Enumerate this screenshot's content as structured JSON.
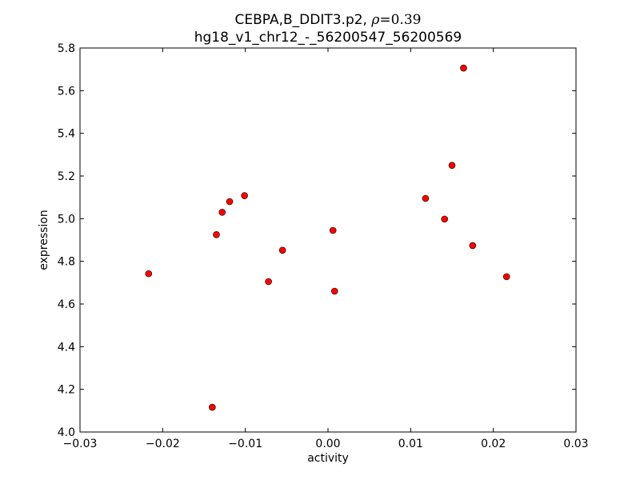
{
  "chart_data": {
    "type": "scatter",
    "title_prefix": "CEBPA,B_DDIT3.p2, ",
    "title_rho_symbol": "ρ",
    "title_rho_value": "=0.39",
    "subtitle": "hg18_v1_chr12_-_56200547_56200569",
    "xlabel": "activity",
    "ylabel": "expression",
    "xlim": [
      -0.03,
      0.03
    ],
    "ylim": [
      4.0,
      5.8
    ],
    "xticks": [
      -0.03,
      -0.02,
      -0.01,
      0.0,
      0.01,
      0.02,
      0.03
    ],
    "xtick_labels": [
      "−0.03",
      "−0.02",
      "−0.01",
      "0.00",
      "0.01",
      "0.02",
      "0.03"
    ],
    "yticks": [
      4.0,
      4.2,
      4.4,
      4.6,
      4.8,
      5.0,
      5.2,
      5.4,
      5.6,
      5.8
    ],
    "ytick_labels": [
      "4.0",
      "4.2",
      "4.4",
      "4.6",
      "4.8",
      "5.0",
      "5.2",
      "5.4",
      "5.6",
      "5.8"
    ],
    "grid": false,
    "marker_color": "#ff0000",
    "points": [
      {
        "x": -0.0217,
        "y": 4.742
      },
      {
        "x": -0.014,
        "y": 4.116
      },
      {
        "x": -0.0135,
        "y": 4.925
      },
      {
        "x": -0.0128,
        "y": 5.03
      },
      {
        "x": -0.0119,
        "y": 5.08
      },
      {
        "x": -0.0101,
        "y": 5.108
      },
      {
        "x": -0.0072,
        "y": 4.705
      },
      {
        "x": -0.0055,
        "y": 4.852
      },
      {
        "x": 0.0006,
        "y": 4.945
      },
      {
        "x": 0.0008,
        "y": 4.66
      },
      {
        "x": 0.0118,
        "y": 5.095
      },
      {
        "x": 0.0141,
        "y": 4.998
      },
      {
        "x": 0.015,
        "y": 5.25
      },
      {
        "x": 0.0164,
        "y": 5.706
      },
      {
        "x": 0.0175,
        "y": 4.874
      },
      {
        "x": 0.0216,
        "y": 4.728
      }
    ]
  }
}
